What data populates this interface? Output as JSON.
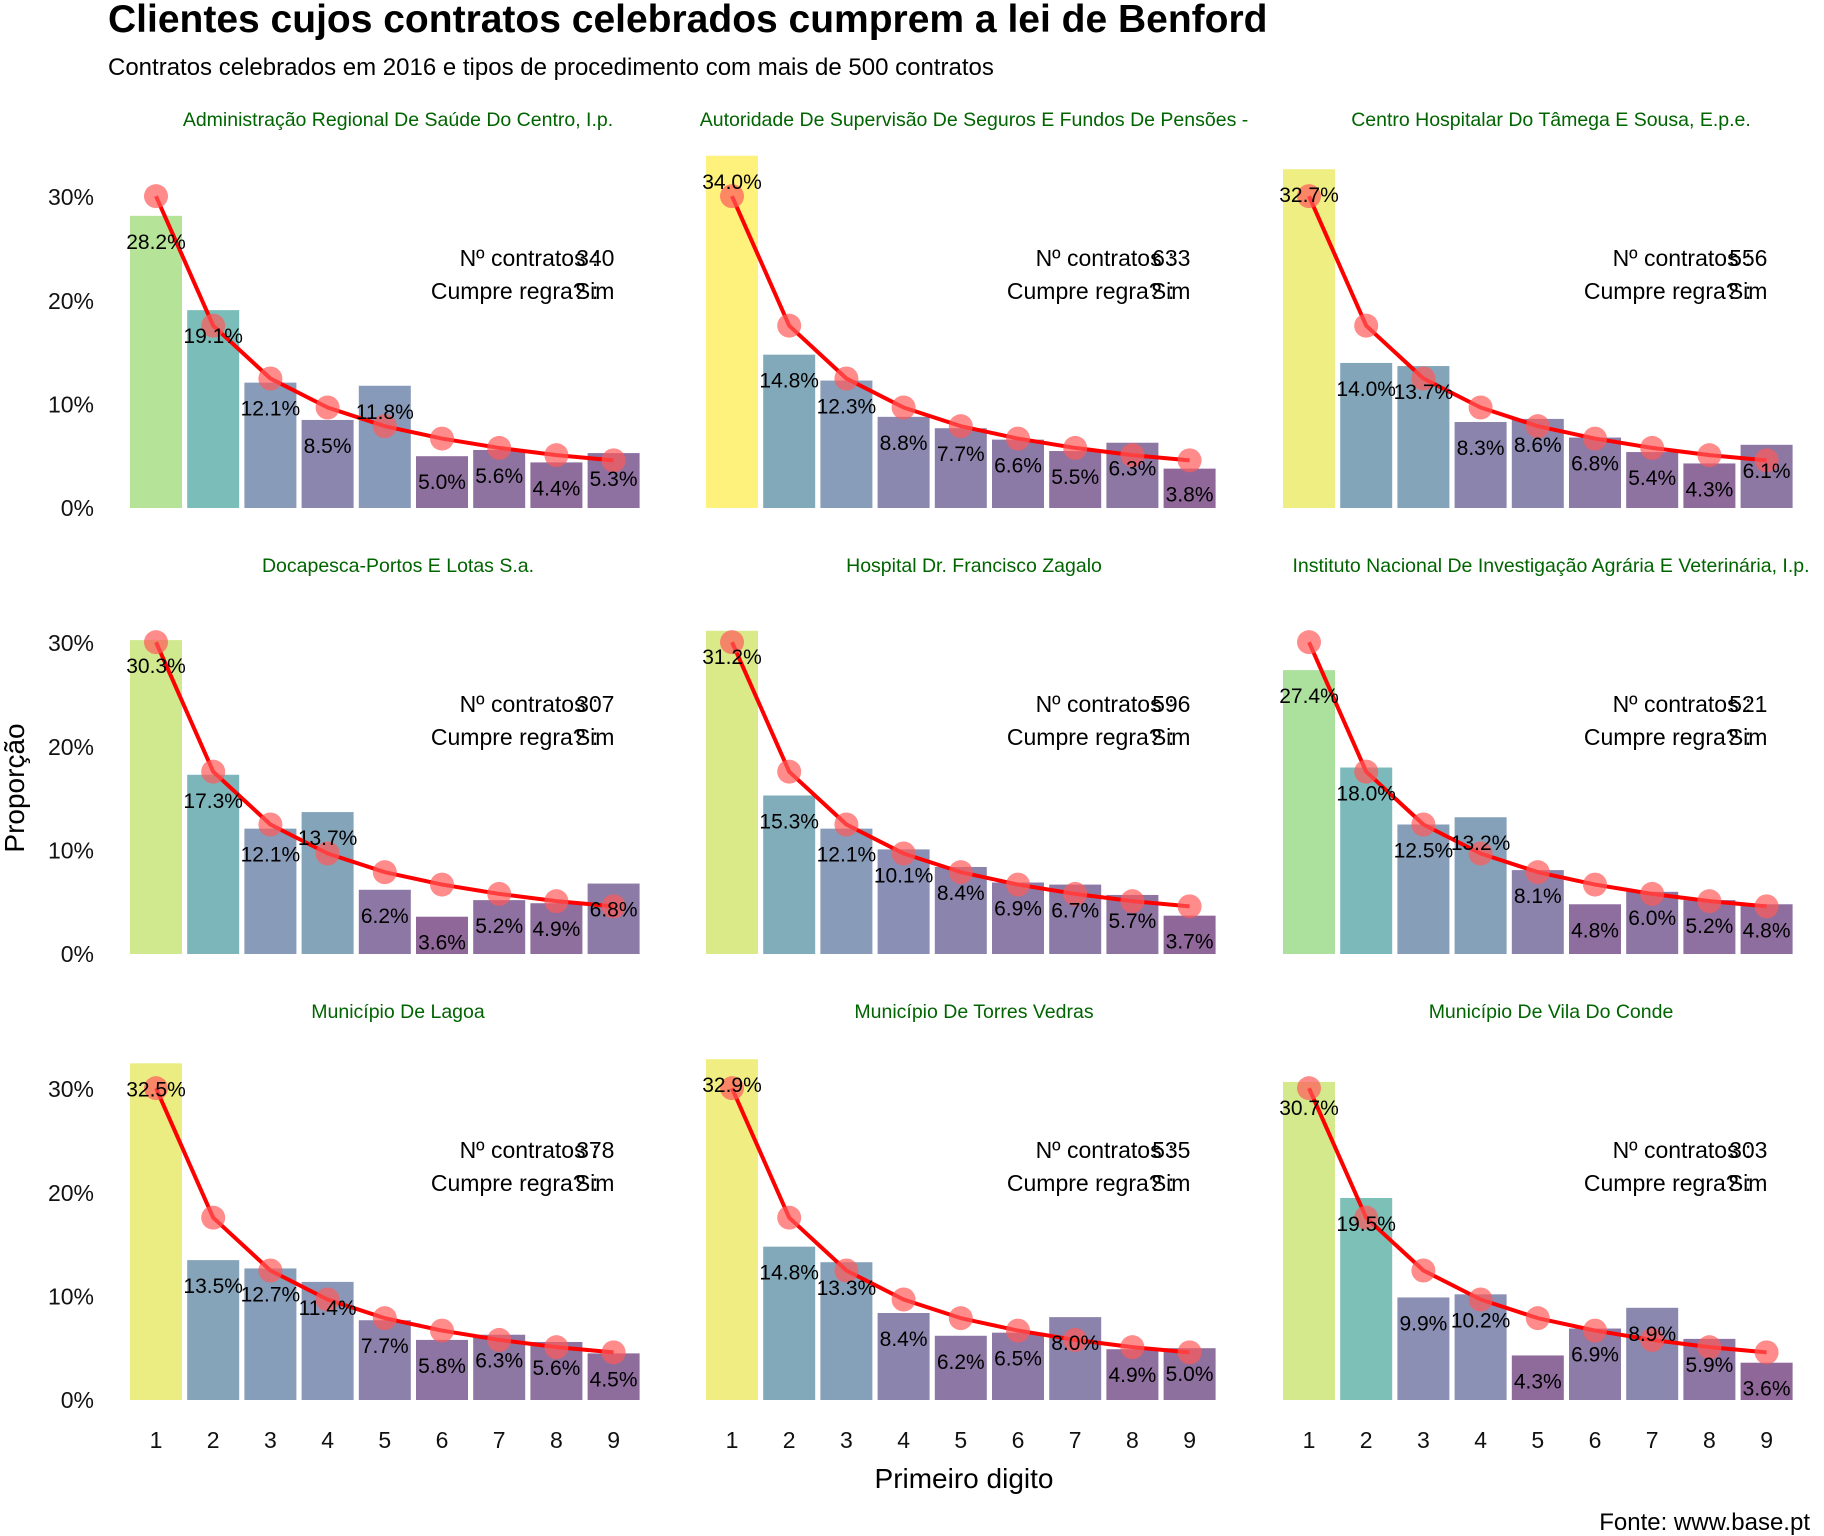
{
  "header": {
    "title": "Clientes cujos contratos celebrados cumprem a lei de Benford",
    "subtitle": "Contratos celebrados em 2016 e tipos de procedimento com mais de 500 contratos"
  },
  "axes": {
    "xlabel": "Primeiro digito",
    "ylabel": "Proporção"
  },
  "caption": "Fonte: www.base.pt",
  "stat_labels": {
    "contracts": "Nº contratos",
    "complies": "Cumpre regra?",
    "separator": ":"
  },
  "colors": {
    "benford_line": "#ff0000",
    "benford_points": "#ff5a5a",
    "facet_title": "#006400",
    "viridis_low": "#440154",
    "viridis_mid": "#21908c",
    "viridis_high": "#fde725"
  },
  "chart_data": {
    "type": "bar",
    "facet_layout": "3x3 grid",
    "categories": [
      "1",
      "2",
      "3",
      "4",
      "5",
      "6",
      "7",
      "8",
      "9"
    ],
    "ylim": [
      0,
      0.34
    ],
    "yticks": [
      0,
      0.1,
      0.2,
      0.3
    ],
    "ytick_labels": [
      "0%",
      "10%",
      "20%",
      "30%"
    ],
    "fill_scale": "viridis (by proportion), alpha 0.6",
    "benford_expected": [
      0.301,
      0.176,
      0.125,
      0.097,
      0.079,
      0.067,
      0.058,
      0.051,
      0.046
    ],
    "facets": [
      {
        "title": "Administração Regional De Saúde Do Centro, I.p.",
        "values": [
          28.2,
          19.1,
          12.1,
          8.5,
          11.8,
          5.0,
          5.6,
          4.4,
          5.3
        ],
        "labels": [
          "28.2%",
          "19.1%",
          "12.1%",
          "8.5%",
          "11.8%",
          "5.0%",
          "5.6%",
          "4.4%",
          "5.3%"
        ],
        "contracts": "340",
        "complies": "Sim"
      },
      {
        "title": "Autoridade De Supervisão De Seguros E Fundos De Pensões -",
        "values": [
          34.0,
          14.8,
          12.3,
          8.8,
          7.7,
          6.6,
          5.5,
          6.3,
          3.8
        ],
        "labels": [
          "34.0%",
          "14.8%",
          "12.3%",
          "8.8%",
          "7.7%",
          "6.6%",
          "5.5%",
          "6.3%",
          "3.8%"
        ],
        "contracts": "633",
        "complies": "Sim"
      },
      {
        "title": "Centro Hospitalar Do Tâmega E Sousa, E.p.e.",
        "values": [
          32.7,
          14.0,
          13.7,
          8.3,
          8.6,
          6.8,
          5.4,
          4.3,
          6.1
        ],
        "labels": [
          "32.7%",
          "14.0%",
          "13.7%",
          "8.3%",
          "8.6%",
          "6.8%",
          "5.4%",
          "4.3%",
          "6.1%"
        ],
        "contracts": "556",
        "complies": "Sim"
      },
      {
        "title": "Docapesca-Portos E Lotas S.a.",
        "values": [
          30.3,
          17.3,
          12.1,
          13.7,
          6.2,
          3.6,
          5.2,
          4.9,
          6.8
        ],
        "labels": [
          "30.3%",
          "17.3%",
          "12.1%",
          "13.7%",
          "6.2%",
          "3.6%",
          "5.2%",
          "4.9%",
          "6.8%"
        ],
        "contracts": "307",
        "complies": "Sim"
      },
      {
        "title": "Hospital Dr. Francisco Zagalo",
        "values": [
          31.2,
          15.3,
          12.1,
          10.1,
          8.4,
          6.9,
          6.7,
          5.7,
          3.7
        ],
        "labels": [
          "31.2%",
          "15.3%",
          "12.1%",
          "10.1%",
          "8.4%",
          "6.9%",
          "6.7%",
          "5.7%",
          "3.7%"
        ],
        "contracts": "596",
        "complies": "Sim"
      },
      {
        "title": "Instituto Nacional De Investigação Agrária E Veterinária, I.p.",
        "values": [
          27.4,
          18.0,
          12.5,
          13.2,
          8.1,
          4.8,
          6.0,
          5.2,
          4.8
        ],
        "labels": [
          "27.4%",
          "18.0%",
          "12.5%",
          "13.2%",
          "8.1%",
          "4.8%",
          "6.0%",
          "5.2%",
          "4.8%"
        ],
        "contracts": "521",
        "complies": "Sim"
      },
      {
        "title": "Município De Lagoa",
        "values": [
          32.5,
          13.5,
          12.7,
          11.4,
          7.7,
          5.8,
          6.3,
          5.6,
          4.5
        ],
        "labels": [
          "32.5%",
          "13.5%",
          "12.7%",
          "11.4%",
          "7.7%",
          "5.8%",
          "6.3%",
          "5.6%",
          "4.5%"
        ],
        "contracts": "378",
        "complies": "Sim"
      },
      {
        "title": "Município De Torres Vedras",
        "values": [
          32.9,
          14.8,
          13.3,
          8.4,
          6.2,
          6.5,
          8.0,
          4.9,
          5.0
        ],
        "labels": [
          "32.9%",
          "14.8%",
          "13.3%",
          "8.4%",
          "6.2%",
          "6.5%",
          "8.0%",
          "4.9%",
          "5.0%"
        ],
        "contracts": "535",
        "complies": "Sim"
      },
      {
        "title": "Município De Vila Do Conde",
        "values": [
          30.7,
          19.5,
          9.9,
          10.2,
          4.3,
          6.9,
          8.9,
          5.9,
          3.6
        ],
        "labels": [
          "30.7%",
          "19.5%",
          "9.9%",
          "10.2%",
          "4.3%",
          "6.9%",
          "8.9%",
          "5.9%",
          "3.6%"
        ],
        "contracts": "303",
        "complies": "Sim"
      }
    ]
  }
}
